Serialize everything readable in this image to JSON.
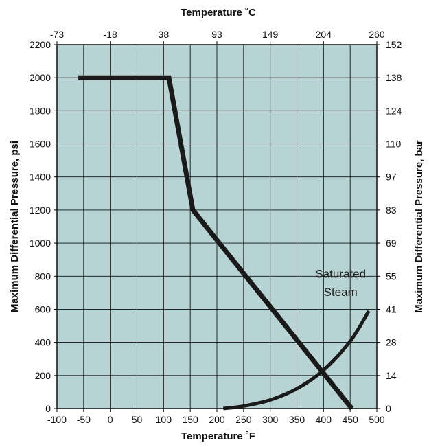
{
  "chart_data": {
    "type": "line",
    "title": "",
    "xlabel_bottom": "Temperature ˚F",
    "xlabel_top": "Temperature ˚C",
    "ylabel_left": "Maximum Differential Pressure, psi",
    "ylabel_right": "Maximum Differential Pressure, bar",
    "xlim": [
      -100,
      500
    ],
    "ylim": [
      0,
      2200
    ],
    "x_ticks": [
      -100,
      -50,
      0,
      50,
      100,
      150,
      200,
      250,
      300,
      350,
      400,
      450,
      500
    ],
    "y_ticks": [
      0,
      200,
      400,
      600,
      800,
      1000,
      1200,
      1400,
      1600,
      1800,
      2000,
      2200
    ],
    "top_ticks": [
      {
        "x": -100,
        "label": "-73"
      },
      {
        "x": 0,
        "label": "-18"
      },
      {
        "x": 100,
        "label": "38"
      },
      {
        "x": 200,
        "label": "93"
      },
      {
        "x": 300,
        "label": "149"
      },
      {
        "x": 400,
        "label": "204"
      },
      {
        "x": 500,
        "label": "260"
      }
    ],
    "right_ticks": [
      {
        "y": 0,
        "label": "0"
      },
      {
        "y": 200,
        "label": "14"
      },
      {
        "y": 400,
        "label": "28"
      },
      {
        "y": 600,
        "label": "41"
      },
      {
        "y": 800,
        "label": "55"
      },
      {
        "y": 1000,
        "label": "69"
      },
      {
        "y": 1200,
        "label": "83"
      },
      {
        "y": 1400,
        "label": "97"
      },
      {
        "y": 1600,
        "label": "110"
      },
      {
        "y": 1800,
        "label": "124"
      },
      {
        "y": 2000,
        "label": "138"
      },
      {
        "y": 2200,
        "label": "152"
      }
    ],
    "grid": true,
    "background_color": "#b8d3d3",
    "series": [
      {
        "color": "#1a1a1a",
        "points": [
          {
            "x": -60,
            "y": 2000
          },
          {
            "x": 110,
            "y": 2000
          },
          {
            "x": 155,
            "y": 1200
          },
          {
            "x": 453,
            "y": 0
          }
        ]
      },
      {
        "color": "#1a1a1a",
        "points": [
          {
            "x": 212,
            "y": 0
          },
          {
            "x": 250,
            "y": 15
          },
          {
            "x": 300,
            "y": 52
          },
          {
            "x": 350,
            "y": 120
          },
          {
            "x": 400,
            "y": 232
          },
          {
            "x": 450,
            "y": 407
          },
          {
            "x": 485,
            "y": 590
          }
        ]
      }
    ],
    "annotations": [
      {
        "text": "Saturated",
        "x": 432,
        "y": 790
      },
      {
        "text": "Steam",
        "x": 432,
        "y": 680
      }
    ]
  }
}
